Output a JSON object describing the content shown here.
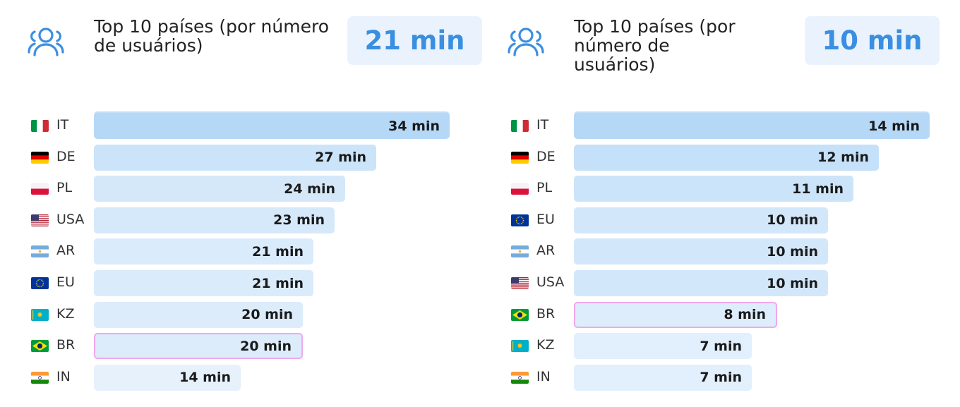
{
  "chart_data": [
    {
      "type": "bar",
      "orientation": "horizontal",
      "title": "Top 10 países (por número de usuários)",
      "summary_value": "21 min",
      "max_value": 34,
      "categories": [
        "IT",
        "DE",
        "PL",
        "USA",
        "AR",
        "EU",
        "KZ",
        "BR",
        "IN"
      ],
      "values": [
        34,
        27,
        24,
        23,
        21,
        21,
        20,
        20,
        14
      ],
      "labels": [
        "34 min",
        "27 min",
        "24 min",
        "23 min",
        "21 min",
        "21 min",
        "20 min",
        "20 min",
        "14 min"
      ],
      "flags": [
        "it-flag-icon",
        "de-flag-icon",
        "pl-flag-icon",
        "us-flag-icon",
        "ar-flag-icon",
        "eu-flag-icon",
        "kz-flag-icon",
        "br-flag-icon",
        "in-flag-icon"
      ],
      "highlight": "BR"
    },
    {
      "type": "bar",
      "orientation": "horizontal",
      "title": "Top 10 países (por número de usuários)",
      "summary_value": "10 min",
      "max_value": 14,
      "categories": [
        "IT",
        "DE",
        "PL",
        "EU",
        "AR",
        "USA",
        "BR",
        "KZ",
        "IN"
      ],
      "values": [
        14,
        12,
        11,
        10,
        10,
        10,
        8,
        7,
        7
      ],
      "labels": [
        "14 min",
        "12 min",
        "11 min",
        "10 min",
        "10 min",
        "10 min",
        "8 min",
        "7 min",
        "7 min"
      ],
      "flags": [
        "it-flag-icon",
        "de-flag-icon",
        "pl-flag-icon",
        "eu-flag-icon",
        "ar-flag-icon",
        "us-flag-icon",
        "br-flag-icon",
        "kz-flag-icon",
        "in-flag-icon"
      ],
      "highlight": "BR"
    }
  ],
  "icons": {
    "header": "users-icon"
  },
  "colors": {
    "accent": "#3b8fe0",
    "badge_bg": "#eaf3fd",
    "bar_max": "#b5d8f7",
    "bar_min": "#eef5fd",
    "highlight_border": "#f0a8ec"
  }
}
